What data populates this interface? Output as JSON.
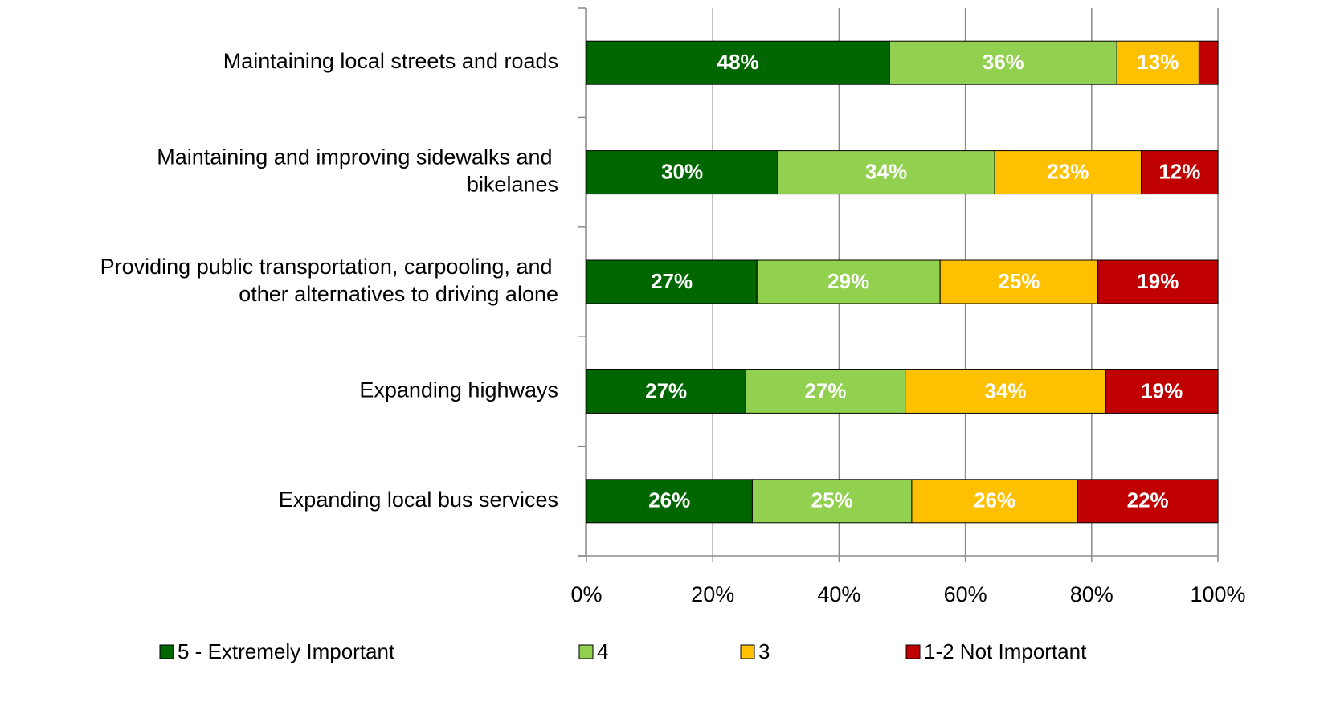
{
  "chart_data": {
    "type": "bar",
    "orientation": "horizontal",
    "stacking": "percent",
    "categories": [
      "Maintaining local streets and roads",
      "Maintaining and improving sidewalks and bikelanes",
      "Providing public transportation, carpooling, and other alternatives to driving alone",
      "Expanding highways",
      "Expanding local bus services"
    ],
    "series": [
      {
        "name": "5 - Extremely Important",
        "color": "#006600",
        "values": [
          48,
          30,
          27,
          27,
          26
        ],
        "value_labels": [
          "48%",
          "30%",
          "27%",
          "27%",
          "26%"
        ]
      },
      {
        "name": "4",
        "color": "#92d050",
        "values": [
          36,
          34,
          29,
          27,
          25
        ],
        "value_labels": [
          "36%",
          "34%",
          "29%",
          "27%",
          "25%"
        ]
      },
      {
        "name": "3",
        "color": "#ffc000",
        "values": [
          13,
          23,
          25,
          34,
          26
        ],
        "value_labels": [
          "13%",
          "23%",
          "25%",
          "34%",
          "26%"
        ]
      },
      {
        "name": "1-2 Not Important",
        "color": "#c00000",
        "values": [
          3,
          12,
          19,
          19,
          22
        ],
        "value_labels": [
          null,
          "12%",
          "19%",
          "19%",
          "22%"
        ]
      }
    ],
    "xlim": [
      0,
      100
    ],
    "xticks": [
      {
        "value": 0,
        "label": "0%"
      },
      {
        "value": 20,
        "label": "20%"
      },
      {
        "value": 40,
        "label": "40%"
      },
      {
        "value": 60,
        "label": "60%"
      },
      {
        "value": 80,
        "label": "80%"
      },
      {
        "value": 100,
        "label": "100%"
      }
    ],
    "grid": true,
    "legend": "bottom"
  }
}
